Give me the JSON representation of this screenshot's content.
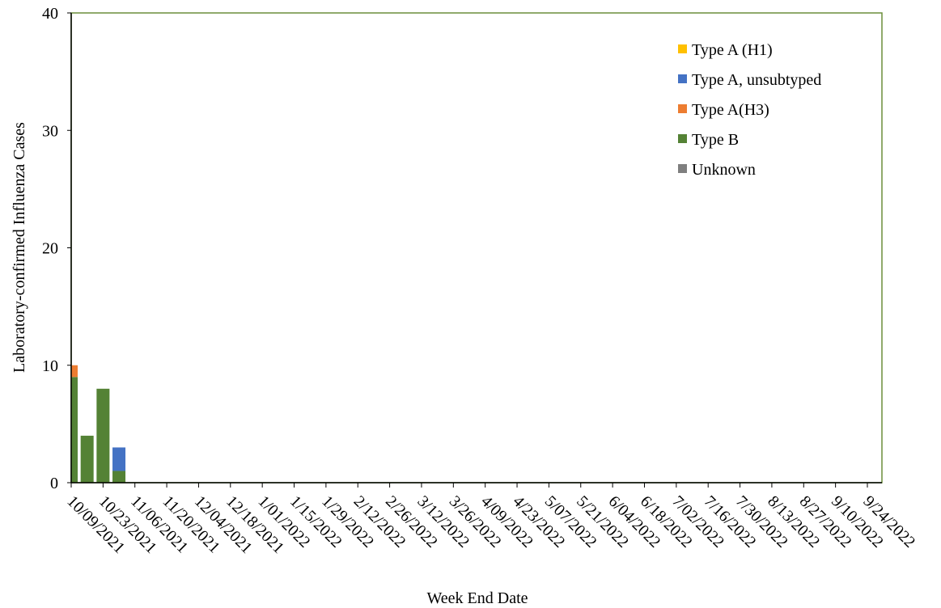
{
  "chart_data": {
    "type": "stacked_bar",
    "x_label": "Week End Date",
    "y_label": "Laboratory-confirmed Influenza Cases",
    "categories": [
      "10/09/2021",
      null,
      "10/23/2021",
      null,
      "11/06/2021",
      null,
      "11/20/2021",
      null,
      "12/04/2021",
      null,
      "12/18/2021",
      null,
      "1/01/2022",
      null,
      "1/15/2022",
      null,
      "1/29/2022",
      null,
      "2/12/2022",
      null,
      "2/26/2022",
      null,
      "3/12/2022",
      null,
      "3/26/2022",
      null,
      "4/09/2022",
      null,
      "4/23/2022",
      null,
      "5/07/2022",
      null,
      "5/21/2022",
      null,
      "6/04/2022",
      null,
      "6/18/2022",
      null,
      "7/02/2022",
      null,
      "7/16/2022",
      null,
      "7/30/2022",
      null,
      "8/13/2022",
      null,
      "8/27/2022",
      null,
      "9/10/2022",
      null,
      "9/24/2022"
    ],
    "series": [
      {
        "name": "Type A (H1)",
        "color": "#ffc000",
        "values": [
          0,
          0,
          0,
          0,
          0,
          0,
          0,
          0,
          0,
          0,
          0,
          0,
          0,
          0,
          0,
          0,
          0,
          0,
          0,
          0,
          0,
          0,
          0,
          0,
          0,
          0,
          0,
          0,
          0,
          0,
          0,
          0,
          0,
          0,
          0,
          0,
          0,
          0,
          0,
          0,
          0,
          0,
          0,
          0,
          0,
          0,
          0,
          0,
          0,
          0,
          0
        ]
      },
      {
        "name": "Type A, unsubtyped",
        "color": "#4472c4",
        "values": [
          0,
          0,
          0,
          2,
          0,
          0,
          0,
          0,
          0,
          0,
          0,
          0,
          0,
          0,
          0,
          0,
          0,
          0,
          0,
          0,
          0,
          0,
          0,
          0,
          0,
          0,
          0,
          0,
          0,
          0,
          0,
          0,
          0,
          0,
          0,
          0,
          0,
          0,
          0,
          0,
          0,
          0,
          0,
          0,
          0,
          0,
          0,
          0,
          0,
          0,
          0
        ]
      },
      {
        "name": "Type A(H3)",
        "color": "#ed7d31",
        "values": [
          1,
          0,
          0,
          0,
          0,
          0,
          0,
          0,
          0,
          0,
          0,
          0,
          0,
          0,
          0,
          0,
          0,
          0,
          0,
          0,
          0,
          0,
          0,
          0,
          0,
          0,
          0,
          0,
          0,
          0,
          0,
          0,
          0,
          0,
          0,
          0,
          0,
          0,
          0,
          0,
          0,
          0,
          0,
          0,
          0,
          0,
          0,
          0,
          0,
          0,
          0
        ]
      },
      {
        "name": "Type B",
        "color": "#548235",
        "values": [
          9,
          4,
          8,
          1,
          0,
          0,
          0,
          0,
          0,
          0,
          0,
          0,
          0,
          0,
          0,
          0,
          0,
          0,
          0,
          0,
          0,
          0,
          0,
          0,
          0,
          0,
          0,
          0,
          0,
          0,
          0,
          0,
          0,
          0,
          0,
          0,
          0,
          0,
          0,
          0,
          0,
          0,
          0,
          0,
          0,
          0,
          0,
          0,
          0,
          0,
          0
        ]
      },
      {
        "name": "Unknown",
        "color": "#7f7f7f",
        "values": [
          0,
          0,
          0,
          0,
          0,
          0,
          0,
          0,
          0,
          0,
          0,
          0,
          0,
          0,
          0,
          0,
          0,
          0,
          0,
          0,
          0,
          0,
          0,
          0,
          0,
          0,
          0,
          0,
          0,
          0,
          0,
          0,
          0,
          0,
          0,
          0,
          0,
          0,
          0,
          0,
          0,
          0,
          0,
          0,
          0,
          0,
          0,
          0,
          0,
          0,
          0
        ]
      }
    ],
    "ylim": [
      0,
      40
    ],
    "yticks": [
      0,
      10,
      20,
      30,
      40
    ],
    "grid": false,
    "legend": "top-right"
  }
}
